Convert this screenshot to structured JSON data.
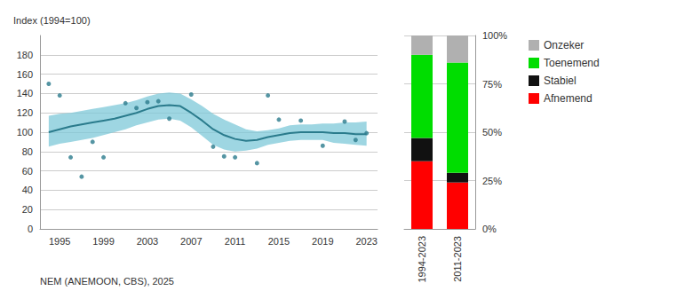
{
  "chart_data": [
    {
      "type": "line",
      "ylabel": "Index (1994=100)",
      "annotation": "NEM (ANEMOON, CBS), 2025",
      "series": [
        {
          "type": "band",
          "color": "#7ec8d8",
          "x": [
            1994,
            1995,
            1996,
            1997,
            1998,
            1999,
            2000,
            2001,
            2002,
            2003,
            2004,
            2005,
            2006,
            2007,
            2008,
            2009,
            2010,
            2011,
            2012,
            2013,
            2014,
            2015,
            2016,
            2017,
            2018,
            2019,
            2020,
            2021,
            2022,
            2023
          ],
          "lower": [
            85,
            88,
            90,
            92,
            94,
            97,
            100,
            103,
            107,
            110,
            113,
            114,
            112,
            105,
            96,
            87,
            82,
            80,
            81,
            83,
            87,
            89,
            91,
            92,
            92,
            92,
            89,
            88,
            87,
            86
          ],
          "upper": [
            117,
            119,
            120,
            122,
            124,
            126,
            128,
            130,
            133,
            137,
            140,
            141,
            140,
            134,
            127,
            119,
            113,
            108,
            103,
            101,
            102,
            104,
            107,
            108,
            108,
            109,
            109,
            110,
            110,
            111
          ]
        },
        {
          "type": "line",
          "color": "#2a7b8c",
          "x": [
            1994,
            1995,
            1996,
            1997,
            1998,
            1999,
            2000,
            2001,
            2002,
            2003,
            2004,
            2005,
            2006,
            2007,
            2008,
            2009,
            2010,
            2011,
            2012,
            2013,
            2014,
            2015,
            2016,
            2017,
            2018,
            2019,
            2020,
            2021,
            2022,
            2023
          ],
          "values": [
            100,
            103,
            106,
            108,
            110,
            112,
            114,
            117,
            120,
            124,
            127,
            128,
            127,
            120,
            112,
            103,
            97,
            93,
            91,
            92,
            95,
            97,
            99,
            100,
            100,
            100,
            99,
            99,
            98,
            98
          ]
        },
        {
          "type": "scatter",
          "color": "#2a7b8c",
          "x": [
            1994,
            1995,
            1996,
            1997,
            1998,
            1999,
            2001,
            2002,
            2003,
            2004,
            2005,
            2007,
            2009,
            2010,
            2011,
            2013,
            2014,
            2015,
            2017,
            2019,
            2021,
            2022,
            2023
          ],
          "values": [
            150,
            138,
            74,
            54,
            90,
            74,
            130,
            125,
            131,
            132,
            114,
            139,
            85,
            75,
            74,
            68,
            138,
            113,
            112,
            86,
            111,
            92,
            99
          ]
        }
      ],
      "xlim": [
        1993.2,
        2024
      ],
      "xticks": [
        1995,
        1999,
        2003,
        2007,
        2011,
        2015,
        2019,
        2023
      ],
      "ylim": [
        0,
        200
      ],
      "yticks": [
        0,
        20,
        40,
        60,
        80,
        100,
        120,
        140,
        160,
        180
      ],
      "grid": true
    },
    {
      "type": "bar",
      "stacked": true,
      "categories": [
        "1994-2023",
        "2011-2023"
      ],
      "series": [
        {
          "name": "Afnemend",
          "color": "#ff0000",
          "values": [
            35,
            24
          ]
        },
        {
          "name": "Stabiel",
          "color": "#111111",
          "values": [
            12,
            5
          ]
        },
        {
          "name": "Toenemend",
          "color": "#00dd00",
          "values": [
            43,
            57
          ]
        },
        {
          "name": "Onzeker",
          "color": "#b0b0b0",
          "values": [
            10,
            14
          ]
        }
      ],
      "ylim": [
        0,
        100
      ],
      "yticks": [
        {
          "value": 0,
          "label": "0%"
        },
        {
          "value": 25,
          "label": "25%"
        },
        {
          "value": 50,
          "label": "50%"
        },
        {
          "value": 75,
          "label": "75%"
        },
        {
          "value": 100,
          "label": "100%"
        }
      ],
      "grid": true,
      "legend": "right"
    }
  ]
}
